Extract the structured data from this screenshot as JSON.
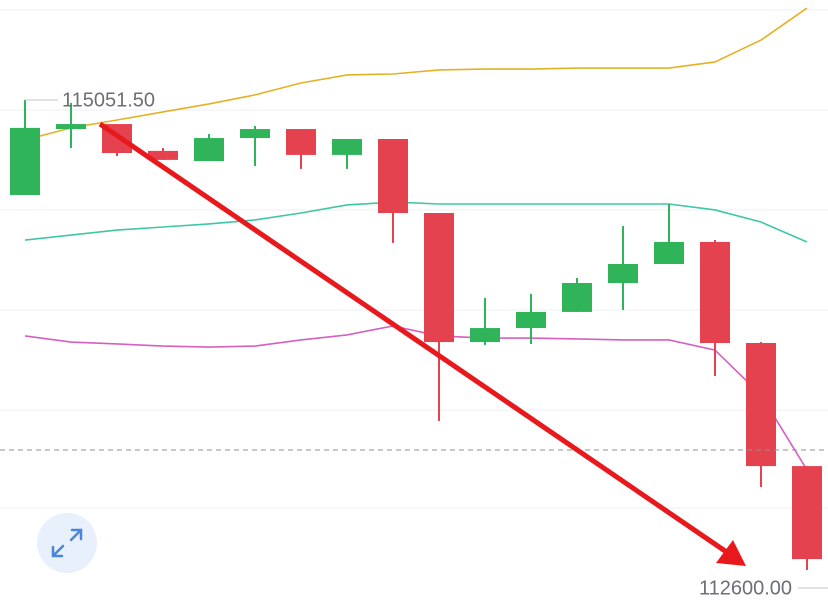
{
  "chart_data": {
    "type": "candlestick",
    "ylim": [
      112381,
      115573
    ],
    "yticks": [
      112923,
      113434,
      113956,
      114478,
      114999,
      115521
    ],
    "grid": true,
    "up_color": "#2fb45a",
    "down_color": "#e5424f",
    "open": [
      114556,
      114900,
      114926,
      114786,
      114733,
      114853,
      114900,
      114765,
      114848,
      114462,
      113789,
      113862,
      113946,
      114097,
      114196,
      114311,
      113784,
      113142
    ],
    "high": [
      115051.5,
      115036,
      114926,
      114801,
      114874,
      114916,
      114900,
      114848,
      114848,
      114462,
      114019,
      114040,
      114123,
      114394,
      114509,
      114321,
      113789,
      113142
    ],
    "low": [
      114556,
      114801,
      114759,
      114739,
      114733,
      114707,
      114692,
      114692,
      114306,
      113377,
      113774,
      113779,
      113946,
      113956,
      114196,
      113612,
      113033,
      112600
    ],
    "close": [
      114906,
      114926,
      114775,
      114739,
      114853,
      114900,
      114765,
      114848,
      114462,
      113789,
      113862,
      113946,
      114097,
      114196,
      114311,
      113784,
      113142,
      112657
    ],
    "lines": [
      {
        "color": "#e5b124",
        "values": [
          114843,
          114906,
          114947,
          114989,
          115031,
          115078,
          115140,
          115182,
          115187,
          115208,
          115213,
          115213,
          115218,
          115218,
          115218,
          115250,
          115364,
          115531
        ]
      },
      {
        "color": "#3ec7a6",
        "values": [
          114321,
          114347,
          114373,
          114389,
          114405,
          114426,
          114462,
          114504,
          114519,
          114509,
          114509,
          114509,
          114509,
          114509,
          114509,
          114478,
          114415,
          114311
        ]
      },
      {
        "color": "#d660c0",
        "values": [
          113821,
          113789,
          113779,
          113768,
          113763,
          113768,
          113800,
          113826,
          113873,
          113821,
          113810,
          113810,
          113805,
          113800,
          113800,
          113747,
          113513,
          113122
        ]
      }
    ],
    "price_line": 113226,
    "annotations": [
      {
        "value": 115051.5,
        "label": "115051.50"
      },
      {
        "value": 112600,
        "label": "112600.00"
      }
    ]
  }
}
